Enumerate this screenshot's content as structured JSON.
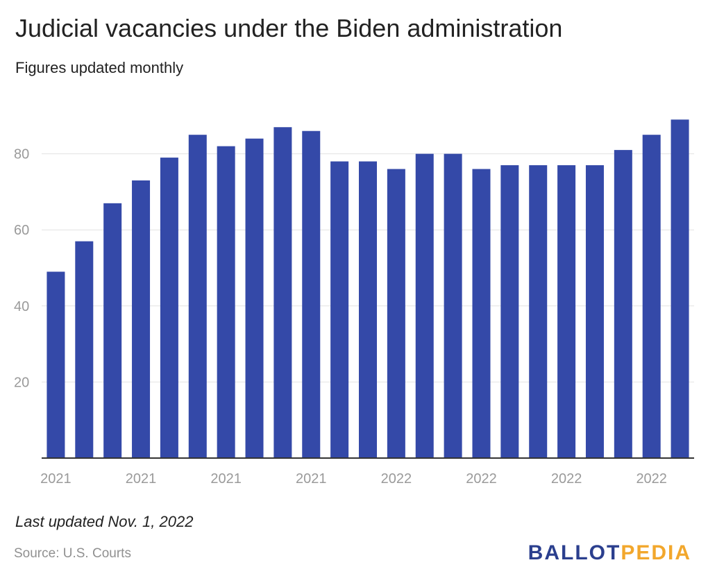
{
  "title": "Judicial vacancies under the Biden administration",
  "subtitle": "Figures updated monthly",
  "note": "Last updated Nov. 1, 2022",
  "source": "Source: U.S. Courts",
  "logo": {
    "part1": "BALLOT",
    "part2": "PEDIA",
    "color1": "#2b3f8e",
    "color2": "#f2a72c"
  },
  "chart_data": {
    "type": "bar",
    "title": "Judicial vacancies under the Biden administration",
    "subtitle": "Figures updated monthly",
    "xlabel": "",
    "ylabel": "",
    "bar_color": "#3449a8",
    "grid": true,
    "ylim": [
      0,
      90
    ],
    "yticks": [
      20,
      40,
      60,
      80
    ],
    "values": [
      49,
      57,
      67,
      73,
      79,
      85,
      82,
      84,
      87,
      86,
      78,
      78,
      76,
      80,
      80,
      76,
      77,
      77,
      77,
      77,
      81,
      85,
      89
    ],
    "xtick_labels": [
      {
        "index": 0,
        "label": "2021"
      },
      {
        "index": 3,
        "label": "2021"
      },
      {
        "index": 6,
        "label": "2021"
      },
      {
        "index": 9,
        "label": "2021"
      },
      {
        "index": 12,
        "label": "2022"
      },
      {
        "index": 15,
        "label": "2022"
      },
      {
        "index": 18,
        "label": "2022"
      },
      {
        "index": 21,
        "label": "2022"
      }
    ]
  }
}
